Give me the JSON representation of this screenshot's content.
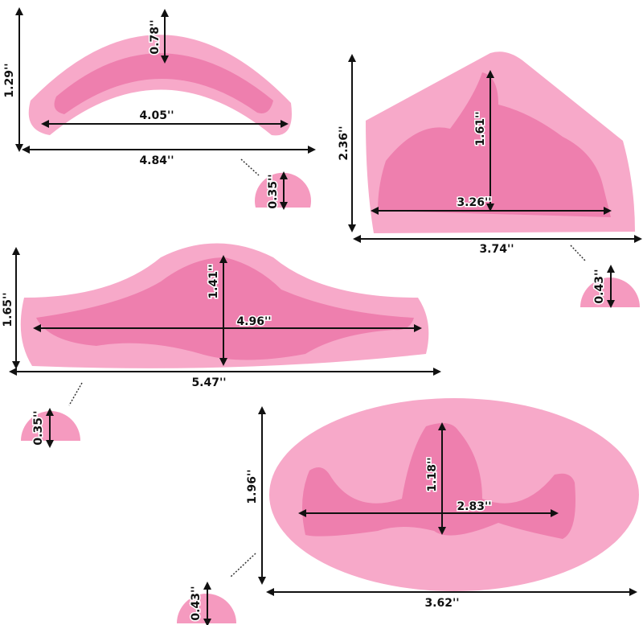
{
  "molds": [
    {
      "height_outer": "1.29''",
      "height_inner": "0.78''",
      "width_inner": "4.05''",
      "width_outer": "4.84''",
      "depth": "0.35''"
    },
    {
      "height_outer": "2.36''",
      "height_inner": "1.61''",
      "width_inner": "3.26''",
      "width_outer": "3.74''",
      "depth": "0.43''"
    },
    {
      "height_outer": "1.65''",
      "height_inner": "1.41''",
      "width_inner": "4.96''",
      "width_outer": "5.47''",
      "depth": "0.35''"
    },
    {
      "height_outer": "1.96''",
      "height_inner": "1.18''",
      "width_inner": "2.83''",
      "width_outer": "3.62''",
      "depth": "0.43''"
    }
  ]
}
